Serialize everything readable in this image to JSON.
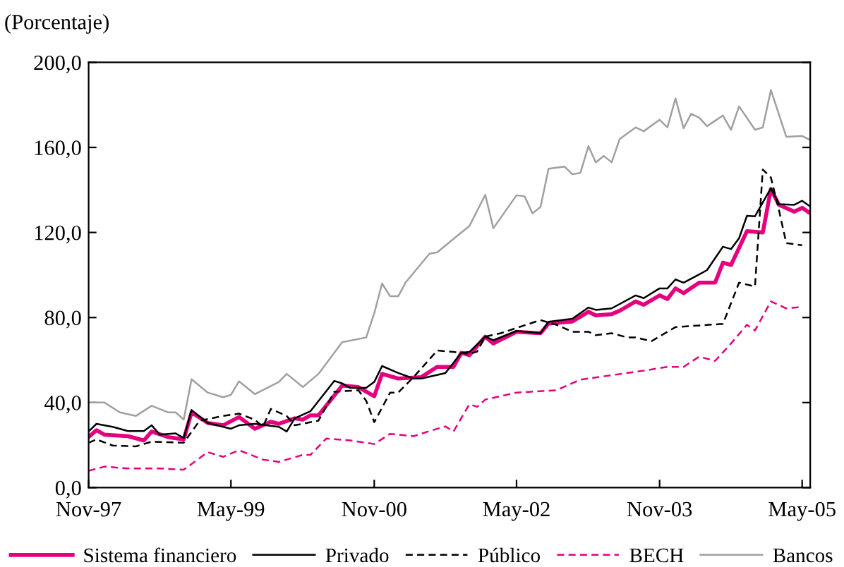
{
  "chart_data": {
    "type": "line",
    "ylabel": "(Porcentaje)",
    "xlim": [
      "1997-11",
      "2005-06"
    ],
    "xticks": [
      {
        "value": "1997-11",
        "label": "Nov-97"
      },
      {
        "value": "1999-05",
        "label": "May-99"
      },
      {
        "value": "2000-11",
        "label": "Nov-00"
      },
      {
        "value": "2002-05",
        "label": "May-02"
      },
      {
        "value": "2003-11",
        "label": "Nov-03"
      },
      {
        "value": "2005-05",
        "label": "May-05"
      }
    ],
    "ylim": [
      0,
      200
    ],
    "yticks": [
      {
        "value": 0,
        "label": "0,0"
      },
      {
        "value": 40,
        "label": "40,0"
      },
      {
        "value": 80,
        "label": "80,0"
      },
      {
        "value": 120,
        "label": "120,0"
      },
      {
        "value": 160,
        "label": "160,0"
      },
      {
        "value": 200,
        "label": "200,0"
      }
    ],
    "grid": false,
    "legend": "bottom",
    "marker": "none",
    "series": [
      {
        "name": "Sistema financiero",
        "color": "#e6007e",
        "line_style": "solid",
        "x": [
          "1997-11",
          "1997-12",
          "1998-01",
          "1998-04",
          "1998-06",
          "1998-07",
          "1998-09",
          "1998-11",
          "1998-12",
          "1999-02",
          "1999-04",
          "1999-06",
          "1999-08",
          "1999-10",
          "1999-11",
          "2000-01",
          "2000-02",
          "2000-03",
          "2000-04",
          "2000-07",
          "2000-09",
          "2000-11",
          "2000-12",
          "2001-02",
          "2001-05",
          "2001-07",
          "2001-09",
          "2001-10",
          "2001-11",
          "2002-01",
          "2002-02",
          "2002-05",
          "2002-08",
          "2002-09",
          "2002-12",
          "2003-02",
          "2003-03",
          "2003-05",
          "2003-06",
          "2003-08",
          "2003-09",
          "2003-11",
          "2003-12",
          "2004-01",
          "2004-02",
          "2004-04",
          "2004-06",
          "2004-07",
          "2004-08",
          "2004-10",
          "2004-12",
          "2005-01",
          "2005-02",
          "2005-04",
          "2005-05",
          "2005-06"
        ],
        "values": [
          23.8,
          27,
          24.9,
          24.2,
          22.2,
          26.4,
          23.8,
          22.7,
          35.4,
          30.4,
          29.3,
          33.2,
          27.7,
          31,
          30,
          32.6,
          32,
          34,
          34,
          48,
          47.3,
          43,
          53.5,
          51.3,
          52,
          56.8,
          56.8,
          63.4,
          62.3,
          71,
          67.8,
          73.3,
          72.6,
          77.2,
          78.1,
          82.7,
          81,
          81.6,
          83.2,
          87.6,
          86,
          90.4,
          88.7,
          93.7,
          91.5,
          96.4,
          96.4,
          105.8,
          104.7,
          120.6,
          120,
          140.4,
          133,
          129.8,
          131.6,
          129
        ]
      },
      {
        "name": "Privado",
        "color": "#000000",
        "line_style": "solid",
        "x": [
          "1997-11",
          "1997-12",
          "1998-02",
          "1998-04",
          "1998-06",
          "1998-07",
          "1998-08",
          "1998-10",
          "1998-11",
          "1998-12",
          "1999-02",
          "1999-05",
          "1999-06",
          "1999-08",
          "1999-11",
          "1999-12",
          "2000-01",
          "2000-03",
          "2000-06",
          "2000-07",
          "2000-08",
          "2000-10",
          "2000-11",
          "2000-12",
          "2001-02",
          "2001-04",
          "2001-05",
          "2001-08",
          "2001-10",
          "2001-11",
          "2002-01",
          "2002-02",
          "2002-05",
          "2002-08",
          "2002-09",
          "2002-12",
          "2003-02",
          "2003-03",
          "2003-05",
          "2003-08",
          "2003-09",
          "2003-11",
          "2003-12",
          "2004-01",
          "2004-02",
          "2004-04",
          "2004-05",
          "2004-07",
          "2004-08",
          "2004-09",
          "2004-10",
          "2004-11",
          "2005-01",
          "2005-02",
          "2005-04",
          "2005-05",
          "2005-06"
        ],
        "values": [
          26.4,
          30,
          28.6,
          26.6,
          26.6,
          29.3,
          24.9,
          25.5,
          23.3,
          36.5,
          30.4,
          27.7,
          29.3,
          30,
          28.6,
          26.4,
          32.6,
          35.9,
          50.2,
          49,
          46.9,
          46.9,
          49.7,
          57.2,
          53.9,
          51.3,
          51.3,
          53.9,
          63.4,
          63.8,
          71,
          69.3,
          73.7,
          72.6,
          78,
          79.4,
          84.7,
          83.6,
          84.3,
          90.4,
          89.1,
          93.7,
          93.7,
          97.9,
          96.4,
          100.3,
          102.3,
          113.3,
          112.2,
          117.3,
          127.8,
          127.6,
          140.8,
          133.3,
          133,
          134.9,
          132.2
        ]
      },
      {
        "name": "Público",
        "color": "#000000",
        "line_style": "dashed",
        "x": [
          "1997-11",
          "1997-12",
          "1998-02",
          "1998-05",
          "1998-07",
          "1998-11",
          "1999-01",
          "1999-04",
          "1999-06",
          "1999-08",
          "1999-09",
          "1999-10",
          "1999-12",
          "2000-01",
          "2000-04",
          "2000-06",
          "2000-09",
          "2000-10",
          "2000-11",
          "2001-01",
          "2001-02",
          "2001-04",
          "2001-07",
          "2001-09",
          "2001-11",
          "2001-12",
          "2002-01",
          "2002-03",
          "2002-08",
          "2002-10",
          "2002-12",
          "2003-02",
          "2003-03",
          "2003-05",
          "2003-07",
          "2003-08",
          "2003-10",
          "2004-01",
          "2004-07",
          "2004-09",
          "2004-11",
          "2004-12",
          "2005-01",
          "2005-02",
          "2005-03",
          "2005-05"
        ],
        "values": [
          21.1,
          22.7,
          19.8,
          19.4,
          21.6,
          21.1,
          31.5,
          33.7,
          34.8,
          31.9,
          28.6,
          37,
          33.7,
          29.3,
          31.5,
          45.1,
          45.8,
          40.9,
          30.8,
          44.7,
          44.7,
          52,
          64.5,
          63.8,
          62.9,
          64,
          71,
          72.6,
          78.8,
          76.6,
          73.3,
          73.3,
          71.7,
          72.6,
          70.6,
          70.6,
          68.9,
          75.5,
          77,
          96.4,
          94.6,
          149.6,
          145.9,
          130.5,
          115,
          114
        ]
      },
      {
        "name": "BECH",
        "color": "#e6007e",
        "line_style": "dashed",
        "x": [
          "1997-11",
          "1998-01",
          "1998-04",
          "1998-08",
          "1998-11",
          "1999-02",
          "1999-04",
          "1999-06",
          "1999-09",
          "1999-11",
          "2000-02",
          "2000-03",
          "2000-05",
          "2000-08",
          "2000-11",
          "2001-01",
          "2001-04",
          "2001-06",
          "2001-08",
          "2001-09",
          "2001-11",
          "2001-12",
          "2002-01",
          "2002-05",
          "2002-10",
          "2003-01",
          "2003-09",
          "2003-12",
          "2004-02",
          "2004-04",
          "2004-06",
          "2004-08",
          "2004-10",
          "2004-11",
          "2005-01",
          "2005-03",
          "2005-05"
        ],
        "values": [
          7.9,
          9.9,
          9,
          9,
          8.4,
          16.7,
          14.5,
          17.6,
          13.2,
          12.1,
          15.4,
          15.4,
          23.1,
          22.2,
          20.5,
          25.3,
          24.2,
          26.6,
          28.8,
          26.4,
          39.2,
          38,
          41.4,
          44.7,
          45.8,
          50.8,
          55,
          56.8,
          56.8,
          61.6,
          59.6,
          67.8,
          76.6,
          73.9,
          87.6,
          84.3,
          85
        ]
      },
      {
        "name": "Bancos",
        "color": "#a0a0a0",
        "line_style": "solid",
        "x": [
          "1997-11",
          "1998-01",
          "1998-03",
          "1998-05",
          "1998-07",
          "1998-09",
          "1998-10",
          "1998-11",
          "1998-12",
          "1999-02",
          "1999-04",
          "1999-05",
          "1999-06",
          "1999-08",
          "1999-11",
          "1999-12",
          "2000-02",
          "2000-04",
          "2000-07",
          "2000-10",
          "2000-11",
          "2000-12",
          "2001-01",
          "2001-02",
          "2001-03",
          "2001-06",
          "2001-07",
          "2001-09",
          "2001-11",
          "2002-01",
          "2002-02",
          "2002-05",
          "2002-06",
          "2002-07",
          "2002-08",
          "2002-09",
          "2002-11",
          "2002-12",
          "2003-01",
          "2003-02",
          "2003-03",
          "2003-04",
          "2003-05",
          "2003-06",
          "2003-08",
          "2003-09",
          "2003-11",
          "2003-12",
          "2004-01",
          "2004-02",
          "2004-03",
          "2004-04",
          "2004-05",
          "2004-07",
          "2004-08",
          "2004-09",
          "2004-11",
          "2004-12",
          "2005-01",
          "2005-03",
          "2005-05",
          "2005-06"
        ],
        "values": [
          40,
          40,
          35.4,
          33.7,
          38.5,
          35.4,
          35.4,
          32,
          51,
          44.7,
          42.5,
          43.6,
          50,
          44,
          49.7,
          53.5,
          47.3,
          53.5,
          68.4,
          70.6,
          82,
          96,
          90,
          90,
          96.4,
          110,
          110.7,
          117,
          123,
          137.7,
          122,
          137.5,
          137,
          129,
          132,
          150,
          151,
          147.4,
          148,
          160.6,
          153,
          156,
          153,
          164,
          169.4,
          167.6,
          173,
          169.4,
          183,
          169,
          175.8,
          174,
          170,
          175,
          168.3,
          179.3,
          168.3,
          169.4,
          187,
          165,
          165.4,
          163.5
        ]
      }
    ]
  }
}
